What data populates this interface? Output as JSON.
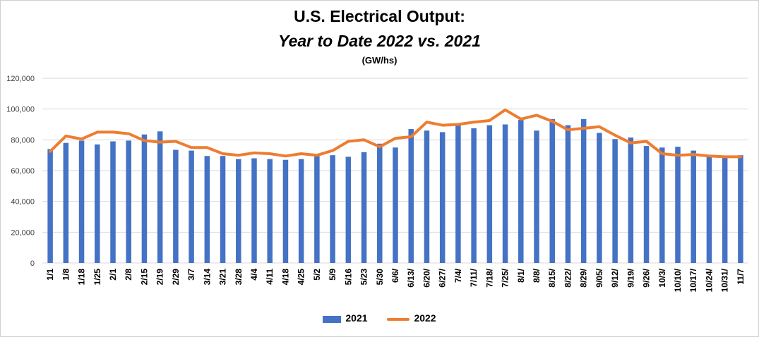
{
  "title": "U.S. Electrical Output:",
  "subtitle": "Year to Date 2022 vs. 2021",
  "unit_label": "(GW/hs)",
  "colors": {
    "series_2021": "#4472C4",
    "series_2022": "#ED7D31",
    "grid": "#d9d9d9"
  },
  "chart_data": {
    "type": "bar",
    "title": "U.S. Electrical Output: Year to Date 2022 vs. 2021",
    "subtitle": "(GW/hs)",
    "xlabel": "",
    "ylabel": "",
    "ylim": [
      0,
      120000
    ],
    "yticks": [
      "0",
      "20,000",
      "40,000",
      "60,000",
      "80,000",
      "100,000",
      "120,000"
    ],
    "grid": true,
    "legend_position": "bottom",
    "categories": [
      "1/1",
      "1/8",
      "1/18",
      "1/25",
      "2/1",
      "2/8",
      "2/15",
      "2/19",
      "2/29",
      "3/7",
      "3/14",
      "3/21",
      "3/28",
      "4/4",
      "4/11",
      "4/18",
      "4/25",
      "5/2",
      "5/9",
      "5/16",
      "5/23",
      "5/30",
      "6/6/",
      "6/13/",
      "6/20/",
      "6/27/",
      "7/4/",
      "7/11/",
      "7/18/",
      "7/25/",
      "8/1/",
      "8/8/",
      "8/15/",
      "8/22/",
      "8/29/",
      "9/05/",
      "9/12/",
      "9/19/",
      "9/26/",
      "10/3/",
      "10/10/",
      "10/17/",
      "10/24/",
      "10/31/",
      "11/7"
    ],
    "series": [
      {
        "name": "2021",
        "type": "bar",
        "values": [
          74000,
          78000,
          79500,
          77000,
          79000,
          79500,
          83500,
          85500,
          73500,
          73000,
          69500,
          69500,
          67500,
          68000,
          67500,
          67000,
          67500,
          69500,
          70000,
          69000,
          72000,
          77500,
          75000,
          87000,
          86000,
          85000,
          89500,
          87500,
          89500,
          90000,
          93000,
          86000,
          93500,
          89500,
          93500,
          84500,
          80500,
          81500,
          76000,
          75000,
          75500,
          73000,
          70000,
          69000,
          70000
        ]
      },
      {
        "name": "2022",
        "type": "line",
        "values": [
          72500,
          82500,
          80500,
          85000,
          85000,
          84000,
          79500,
          78500,
          79000,
          75000,
          75000,
          71000,
          70000,
          71500,
          71000,
          69500,
          71000,
          70000,
          73000,
          79000,
          80000,
          75500,
          81000,
          82000,
          91500,
          89500,
          90000,
          91500,
          92500,
          99500,
          93500,
          96000,
          92000,
          86500,
          87500,
          88500,
          83000,
          78000,
          79000,
          71000,
          70000,
          70500,
          69500,
          69000,
          69000
        ]
      }
    ]
  }
}
